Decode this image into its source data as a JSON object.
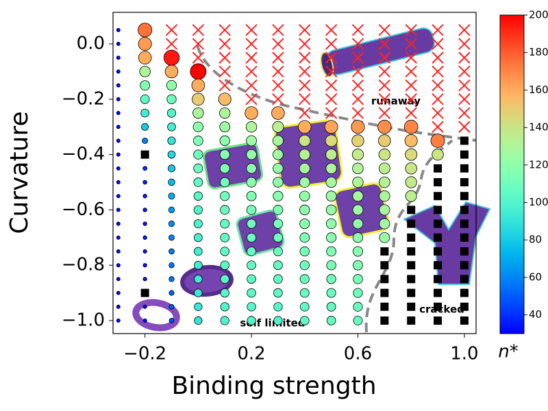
{
  "chart_data": {
    "type": "scatter",
    "xlabel": "Binding strength",
    "ylabel": "Curvature",
    "xlim": [
      -0.32,
      1.044
    ],
    "ylim": [
      -1.047,
      0.114
    ],
    "xticks": [
      {
        "value": -0.2,
        "label": "−0.2"
      },
      0.2,
      0.6,
      {
        "value": 1.0,
        "label": "1.0"
      }
    ],
    "yticks": [
      {
        "value": 0.0,
        "label": "0.0"
      },
      {
        "value": -0.2,
        "label": "−0.2"
      },
      {
        "value": -0.4,
        "label": "−0.4"
      },
      {
        "value": -0.6,
        "label": "−0.6"
      },
      {
        "value": -0.8,
        "label": "−0.8"
      },
      {
        "value": -1.0,
        "label": "−1.0"
      }
    ],
    "colormap": "rainbow",
    "colorbar_label": "n*",
    "clim": [
      30,
      200
    ],
    "cticks": [
      40,
      60,
      80,
      100,
      120,
      140,
      160,
      180,
      200
    ],
    "cross_color": "#ff2020",
    "square_color": "#000000",
    "annotations": [
      "runaway",
      "self limited",
      "cracked"
    ],
    "y_grid": [
      0.05,
      0.0,
      -0.05,
      -0.1,
      -0.15,
      -0.2,
      -0.25,
      -0.3,
      -0.35,
      -0.4,
      -0.45,
      -0.5,
      -0.55,
      -0.6,
      -0.65,
      -0.7,
      -0.75,
      -0.8,
      -0.85,
      -0.9,
      -0.95,
      -1.0
    ],
    "columns": [
      {
        "x": -0.3,
        "n": [
          32,
          32,
          32,
          32,
          32,
          32,
          32,
          32,
          32,
          32,
          32,
          32,
          32,
          32,
          32,
          32,
          32,
          32,
          32,
          32,
          32,
          32
        ],
        "runaway": [],
        "cracked": []
      },
      {
        "x": -0.2,
        "n": [
          175,
          165,
          160,
          130,
          115,
          105,
          95,
          80,
          60,
          null,
          40,
          38,
          36,
          36,
          35,
          35,
          34,
          34,
          34,
          null,
          33,
          33
        ],
        "runaway": [],
        "cracked": [
          -0.4,
          -0.9
        ]
      },
      {
        "x": -0.1,
        "n": [
          null,
          null,
          195,
          160,
          120,
          110,
          100,
          95,
          90,
          85,
          80,
          75,
          70,
          65,
          62,
          60,
          58,
          55,
          55,
          52,
          50,
          48
        ],
        "runaway": [
          0.05,
          0.0
        ],
        "cracked": []
      },
      {
        "x": 0.0,
        "n": [
          null,
          null,
          null,
          200,
          160,
          150,
          130,
          120,
          115,
          110,
          108,
          105,
          102,
          100,
          98,
          96,
          95,
          94,
          93,
          92,
          91,
          90
        ],
        "runaway": [
          0.05,
          0.0,
          -0.05
        ],
        "cracked": []
      },
      {
        "x": 0.1,
        "n": [
          null,
          null,
          null,
          null,
          null,
          155,
          130,
          125,
          120,
          118,
          115,
          112,
          110,
          108,
          106,
          105,
          104,
          103,
          102,
          101,
          100,
          100
        ],
        "runaway": [
          0.05,
          0.0,
          -0.05,
          -0.1,
          -0.15
        ],
        "cracked": []
      },
      {
        "x": 0.2,
        "n": [
          null,
          null,
          null,
          null,
          null,
          null,
          160,
          130,
          125,
          122,
          120,
          118,
          115,
          112,
          110,
          108,
          106,
          105,
          104,
          103,
          102,
          100
        ],
        "runaway": [
          0.05,
          0.0,
          -0.05,
          -0.1,
          -0.15,
          -0.2
        ],
        "cracked": []
      },
      {
        "x": 0.3,
        "n": [
          null,
          null,
          null,
          null,
          null,
          null,
          160,
          135,
          128,
          125,
          122,
          120,
          118,
          115,
          112,
          110,
          108,
          106,
          105,
          104,
          102,
          100
        ],
        "runaway": [
          0.05,
          0.0,
          -0.05,
          -0.1,
          -0.15,
          -0.2
        ],
        "cracked": []
      },
      {
        "x": 0.4,
        "n": [
          null,
          null,
          null,
          null,
          null,
          null,
          null,
          160,
          140,
          132,
          128,
          125,
          122,
          120,
          118,
          115,
          112,
          110,
          108,
          106,
          105,
          104
        ],
        "runaway": [
          0.05,
          0.0,
          -0.05,
          -0.1,
          -0.15,
          -0.2,
          -0.25
        ],
        "cracked": []
      },
      {
        "x": 0.5,
        "n": [
          null,
          null,
          null,
          null,
          null,
          null,
          null,
          162,
          145,
          135,
          130,
          128,
          125,
          122,
          120,
          118,
          115,
          112,
          110,
          108,
          106,
          105
        ],
        "runaway": [
          0.05,
          0.0,
          -0.05,
          -0.1,
          -0.15,
          -0.2,
          -0.25
        ],
        "cracked": []
      },
      {
        "x": 0.6,
        "n": [
          null,
          null,
          null,
          null,
          null,
          null,
          null,
          165,
          148,
          138,
          132,
          130,
          128,
          125,
          122,
          120,
          118,
          115,
          112,
          110,
          108,
          106
        ],
        "runaway": [
          0.05,
          0.0,
          -0.05,
          -0.1,
          -0.15,
          -0.2,
          -0.25
        ],
        "cracked": []
      },
      {
        "x": 0.7,
        "n": [
          null,
          null,
          null,
          null,
          null,
          null,
          null,
          168,
          150,
          140,
          135,
          132,
          130,
          128,
          126,
          124,
          null,
          null,
          null,
          null,
          null,
          null
        ],
        "runaway": [
          0.05,
          0.0,
          -0.05,
          -0.1,
          -0.15,
          -0.2,
          -0.25
        ],
        "cracked": [
          -0.75,
          -0.8,
          -0.85,
          -0.9,
          -0.95,
          -1.0
        ]
      },
      {
        "x": 0.8,
        "n": [
          null,
          null,
          null,
          null,
          null,
          null,
          null,
          170,
          155,
          145,
          140,
          138,
          135,
          null,
          null,
          null,
          null,
          null,
          null,
          null,
          null,
          null
        ],
        "runaway": [
          0.05,
          0.0,
          -0.05,
          -0.1,
          -0.15,
          -0.2,
          -0.25
        ],
        "cracked": [
          -0.6,
          -0.65,
          -0.7,
          -0.75,
          -0.8,
          -0.85,
          -0.9,
          -0.95,
          -1.0
        ]
      },
      {
        "x": 0.9,
        "n": [
          null,
          null,
          null,
          null,
          null,
          null,
          null,
          null,
          172,
          140,
          null,
          null,
          null,
          null,
          null,
          null,
          null,
          null,
          null,
          null,
          null,
          null
        ],
        "runaway": [
          0.05,
          0.0,
          -0.05,
          -0.1,
          -0.15,
          -0.2,
          -0.25,
          -0.3
        ],
        "cracked": [
          -0.45,
          -0.5,
          -0.55,
          -0.6,
          -0.65,
          -0.7,
          -0.75,
          -0.8,
          -0.85,
          -0.9,
          -0.95,
          -1.0
        ]
      },
      {
        "x": 1.0,
        "n": [
          null,
          null,
          null,
          null,
          null,
          null,
          null,
          null,
          null,
          null,
          null,
          null,
          null,
          null,
          null,
          null,
          null,
          null,
          null,
          null,
          null,
          null
        ],
        "runaway": [
          0.05,
          0.0,
          -0.05,
          -0.1,
          -0.15,
          -0.2,
          -0.25,
          -0.3
        ],
        "cracked": [
          -0.35,
          -0.4,
          -0.45,
          -0.5,
          -0.55,
          -0.6,
          -0.65,
          -0.7,
          -0.75,
          -0.8,
          -0.85,
          -0.9,
          -0.95,
          -1.0
        ]
      }
    ]
  }
}
